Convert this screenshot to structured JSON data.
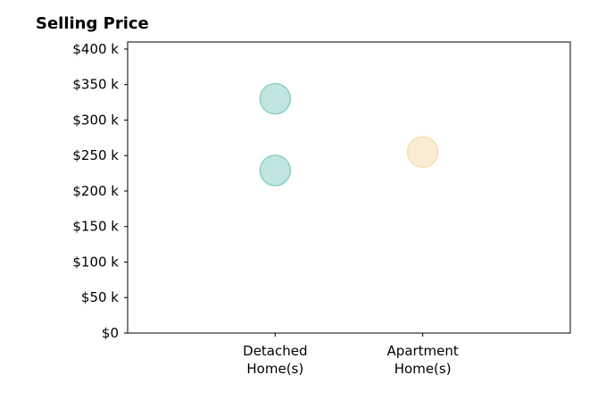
{
  "chart_data": {
    "type": "scatter",
    "title": "Selling Price",
    "xlabel": "",
    "ylabel": "",
    "categories": [
      [
        "Detached",
        "Home(s)"
      ],
      [
        "Apartment",
        "Home(s)"
      ]
    ],
    "xlim": [
      -1,
      2
    ],
    "ylim": [
      0,
      410000
    ],
    "yticks": [
      {
        "value": 0,
        "label": "$0"
      },
      {
        "value": 50000,
        "label": "$50 k"
      },
      {
        "value": 100000,
        "label": "$100 k"
      },
      {
        "value": 150000,
        "label": "$150 k"
      },
      {
        "value": 200000,
        "label": "$200 k"
      },
      {
        "value": 250000,
        "label": "$250 k"
      },
      {
        "value": 300000,
        "label": "$300 k"
      },
      {
        "value": 350000,
        "label": "$350 k"
      },
      {
        "value": 400000,
        "label": "$400 k"
      }
    ],
    "grid": false,
    "points": [
      {
        "category": 0,
        "y": 330000,
        "color": "#8ccfc7"
      },
      {
        "category": 0,
        "y": 229000,
        "color": "#8ccfc7"
      },
      {
        "category": 1,
        "y": 255000,
        "color": "#f3dfb0"
      }
    ]
  }
}
